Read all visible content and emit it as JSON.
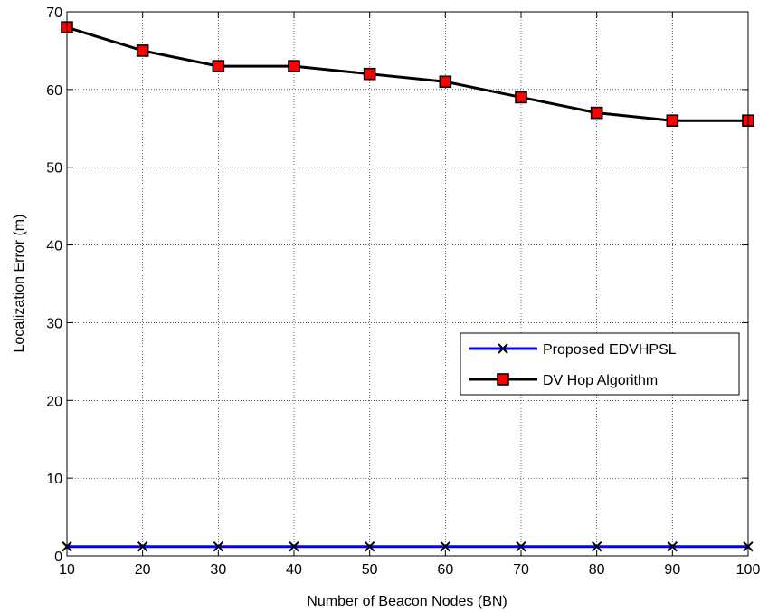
{
  "chart_data": {
    "type": "line",
    "title": "",
    "xlabel": "Number of Beacon Nodes (BN)",
    "ylabel": "Localization Error (m)",
    "xlim": [
      10,
      100
    ],
    "ylim": [
      0,
      70
    ],
    "xticks": [
      10,
      20,
      30,
      40,
      50,
      60,
      70,
      80,
      90,
      100
    ],
    "yticks": [
      0,
      10,
      20,
      30,
      40,
      50,
      60,
      70
    ],
    "grid": true,
    "legend_position": "right",
    "x": [
      10,
      20,
      30,
      40,
      50,
      60,
      70,
      80,
      90,
      100
    ],
    "series": [
      {
        "name": "Proposed EDVHPSL",
        "values": [
          1.2,
          1.2,
          1.2,
          1.2,
          1.2,
          1.2,
          1.2,
          1.2,
          1.2,
          1.2
        ],
        "color": "#0000ff",
        "marker": "x"
      },
      {
        "name": "DV Hop Algorithm",
        "values": [
          68,
          65,
          63,
          63,
          62,
          61,
          59,
          57,
          56,
          56
        ],
        "color": "#000000",
        "marker_fill": "#ff0000",
        "marker": "square"
      }
    ]
  }
}
